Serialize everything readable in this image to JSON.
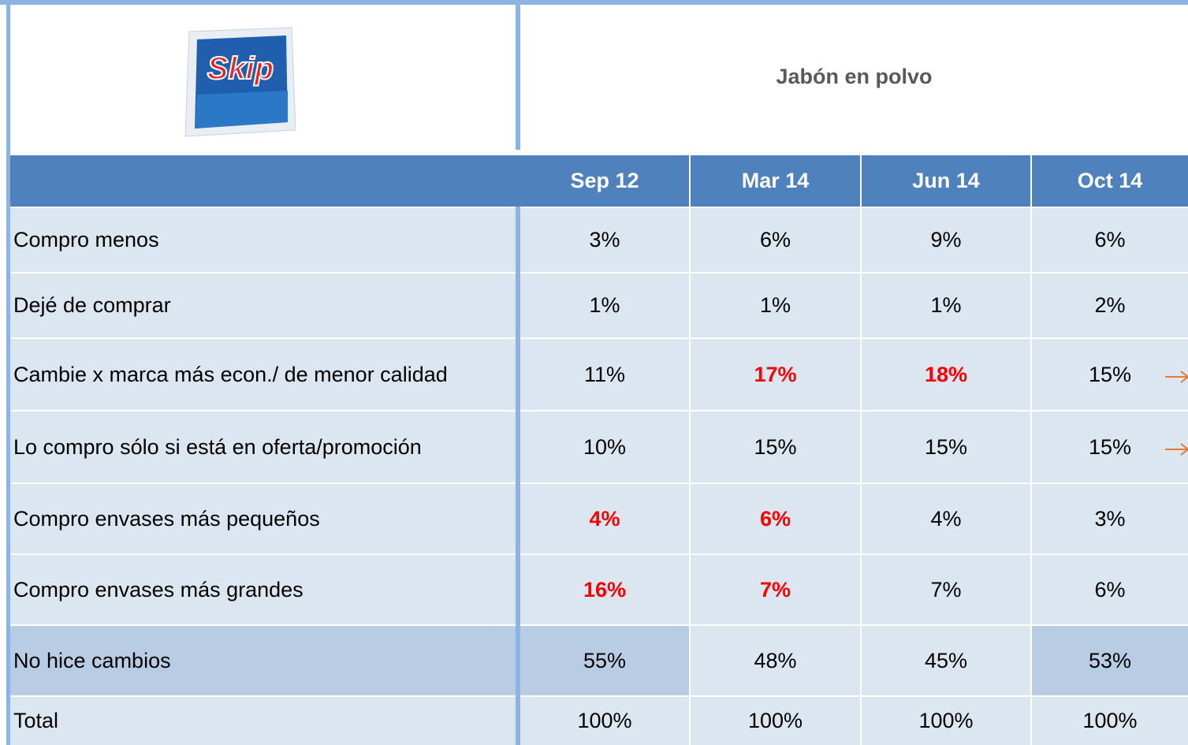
{
  "product_logo": "Skip",
  "header": {
    "title": "Jabón en polvo"
  },
  "table": {
    "columns": [
      "Sep 12",
      "Mar 14",
      "Jun 14",
      "Oct 14"
    ],
    "highlight_color": "#ff0000",
    "rows": [
      {
        "label": "Compro menos",
        "cells": [
          "3%",
          "6%",
          "9%",
          "6%"
        ],
        "highlight": [
          false,
          false,
          false,
          false
        ]
      },
      {
        "label": "Dejé de comprar",
        "cells": [
          "1%",
          "1%",
          "1%",
          "2%"
        ],
        "highlight": [
          false,
          false,
          false,
          false
        ]
      },
      {
        "label": "Cambie x marca más econ./ de menor calidad",
        "cells": [
          "11%",
          "17%",
          "18%",
          "15%"
        ],
        "highlight": [
          false,
          true,
          true,
          false
        ]
      },
      {
        "label": "Lo compro sólo si está en oferta/promoción",
        "cells": [
          "10%",
          "15%",
          "15%",
          "15%"
        ],
        "highlight": [
          false,
          false,
          false,
          false
        ]
      },
      {
        "label": "Compro envases más pequeños",
        "cells": [
          "4%",
          "6%",
          "4%",
          "3%"
        ],
        "highlight": [
          true,
          true,
          false,
          false
        ]
      },
      {
        "label": "Compro envases más grandes",
        "cells": [
          "16%",
          "7%",
          "7%",
          "6%"
        ],
        "highlight": [
          true,
          true,
          false,
          false
        ]
      },
      {
        "label": "No hice cambios",
        "cells": [
          "55%",
          "48%",
          "45%",
          "53%"
        ],
        "highlight": [
          false,
          false,
          false,
          false
        ]
      },
      {
        "label": "Total",
        "cells": [
          "100%",
          "100%",
          "100%",
          "100%"
        ],
        "highlight": [
          false,
          false,
          false,
          false
        ]
      }
    ]
  }
}
